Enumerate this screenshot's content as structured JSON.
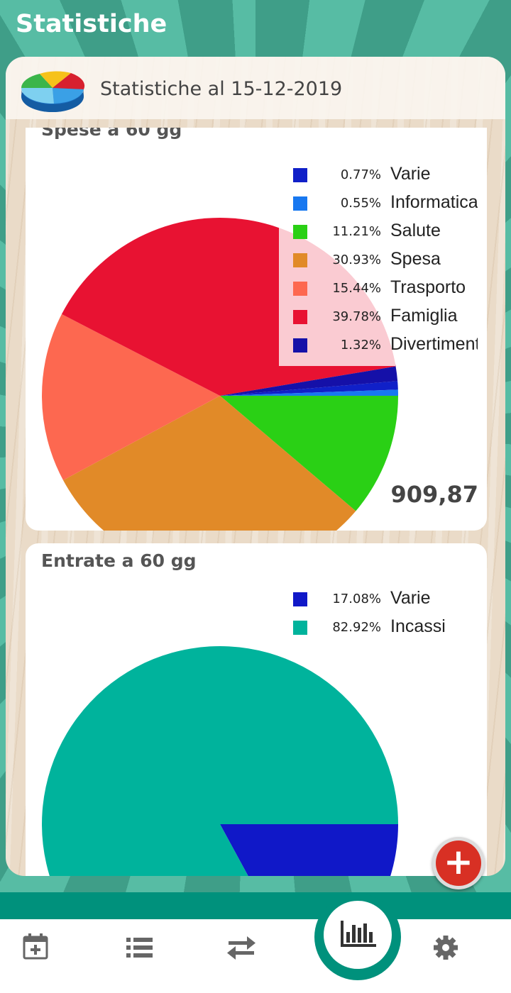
{
  "header": {
    "title": "Statistiche"
  },
  "panel": {
    "title": "Statistiche al 15-12-2019"
  },
  "cards": [
    {
      "title": "Spese a 60 gg",
      "total": "909,87",
      "legend": [
        {
          "pct": "0.77%",
          "label": "Varie",
          "color": "#1020c8"
        },
        {
          "pct": "0.55%",
          "label": "Informatica",
          "color": "#1878f0"
        },
        {
          "pct": "11.21%",
          "label": "Salute",
          "color": "#2ad015"
        },
        {
          "pct": "30.93%",
          "label": "Spesa",
          "color": "#e18a28"
        },
        {
          "pct": "15.44%",
          "label": "Trasporto",
          "color": "#fd6850"
        },
        {
          "pct": "39.78%",
          "label": "Famiglia",
          "color": "#e81232"
        },
        {
          "pct": "1.32%",
          "label": "Divertimento",
          "color": "#1510a8"
        }
      ]
    },
    {
      "title": "Entrate a 60 gg",
      "legend": [
        {
          "pct": "17.08%",
          "label": "Varie",
          "color": "#1018c8"
        },
        {
          "pct": "82.92%",
          "label": "Incassi",
          "color": "#00b39c"
        }
      ]
    }
  ],
  "chart_data": [
    {
      "type": "pie",
      "title": "Spese a 60 gg",
      "categories": [
        "Varie",
        "Informatica",
        "Salute",
        "Spesa",
        "Trasporto",
        "Famiglia",
        "Divertimento"
      ],
      "values": [
        0.77,
        0.55,
        11.21,
        30.93,
        15.44,
        39.78,
        1.32
      ],
      "colors": [
        "#1020c8",
        "#1878f0",
        "#2ad015",
        "#e18a28",
        "#fd6850",
        "#e81232",
        "#1510a8"
      ],
      "total_label": "909,87",
      "legend_position": "top-right"
    },
    {
      "type": "pie",
      "title": "Entrate a 60 gg",
      "categories": [
        "Varie",
        "Incassi"
      ],
      "values": [
        17.08,
        82.92
      ],
      "colors": [
        "#1018c8",
        "#00b39c"
      ],
      "legend_position": "top-right"
    }
  ],
  "fab": {
    "icon": "plus-icon",
    "color": "#d83024"
  },
  "bottom_nav": {
    "items": [
      {
        "icon": "calendar-add-icon"
      },
      {
        "icon": "list-icon"
      },
      {
        "icon": "transfer-arrows-icon"
      },
      {
        "icon": "bar-chart-icon",
        "active": true
      },
      {
        "icon": "gear-icon"
      }
    ],
    "accent": "#00917c"
  }
}
